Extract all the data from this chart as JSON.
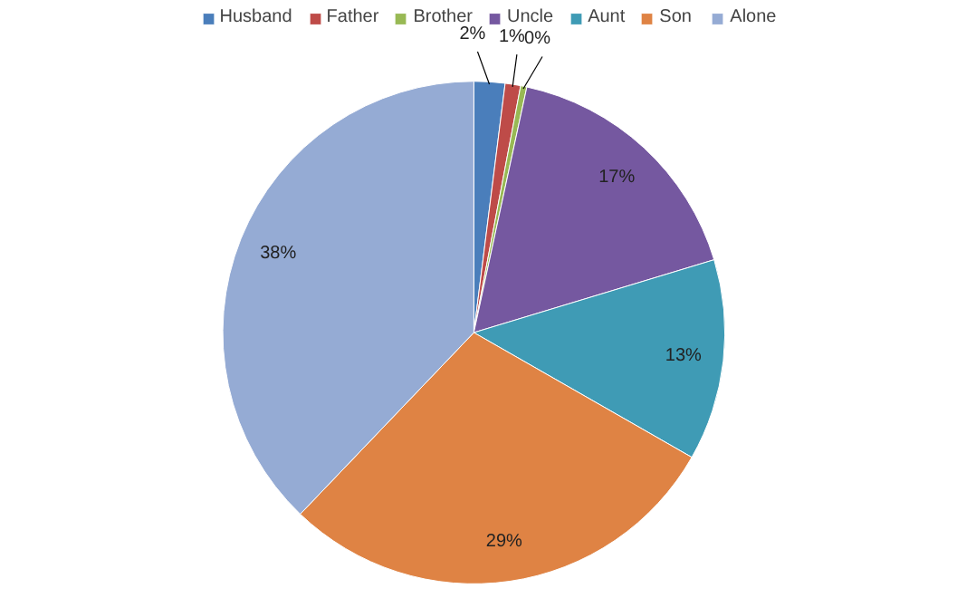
{
  "chart_data": {
    "type": "pie",
    "categories": [
      "Husband",
      "Father",
      "Brother",
      "Uncle",
      "Aunt",
      "Son",
      "Alone"
    ],
    "values": [
      2,
      1,
      0.4,
      17,
      13,
      29,
      38
    ],
    "colors": [
      "#4a7ebb",
      "#be4b48",
      "#98b954",
      "#7558a0",
      "#3f9bb5",
      "#df8344",
      "#95abd4"
    ],
    "value_labels": [
      "2%",
      "1%",
      "0%",
      "17%",
      "13%",
      "29%",
      "38%"
    ],
    "legend": "top"
  }
}
